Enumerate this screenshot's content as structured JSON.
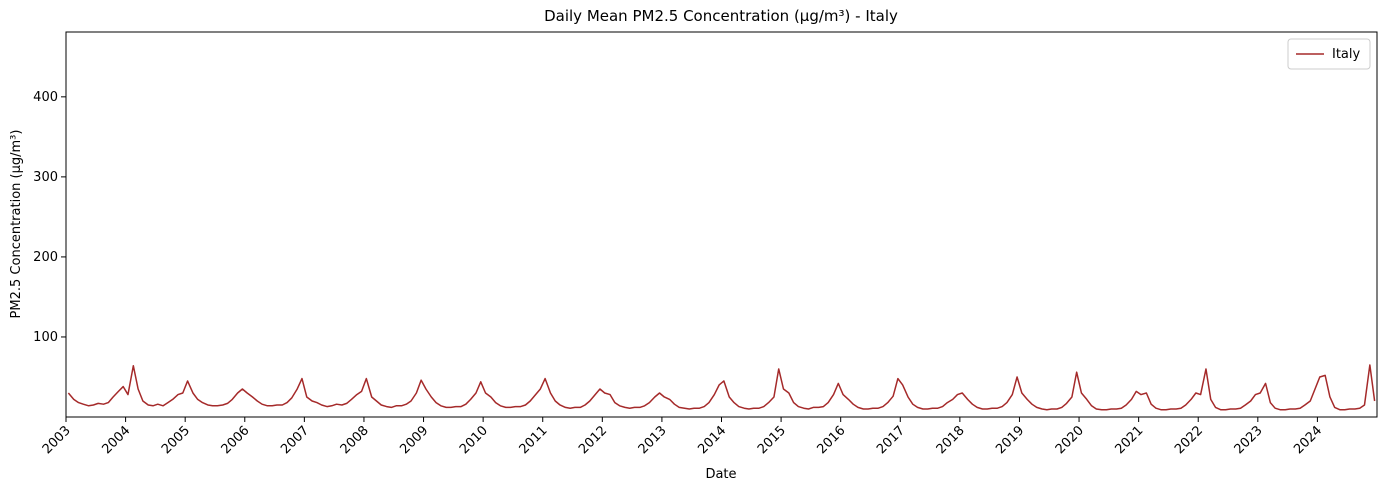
{
  "chart_data": {
    "type": "line",
    "title": "Daily Mean PM2.5 Concentration (µg/m³) - Italy",
    "xlabel": "Date",
    "ylabel": "PM2.5 Concentration (µg/m³)",
    "xlim": [
      2003,
      2025
    ],
    "ylim": [
      0,
      481
    ],
    "xticks": [
      2003,
      2004,
      2005,
      2006,
      2007,
      2008,
      2009,
      2010,
      2011,
      2012,
      2013,
      2014,
      2015,
      2016,
      2017,
      2018,
      2019,
      2020,
      2021,
      2022,
      2023,
      2024
    ],
    "yticks": [
      100,
      200,
      300,
      400
    ],
    "grid": false,
    "legend": "upper right",
    "x": [
      2003.04,
      2003.13,
      2003.21,
      2003.29,
      2003.38,
      2003.46,
      2003.54,
      2003.63,
      2003.71,
      2003.79,
      2003.88,
      2003.96,
      2004.04,
      2004.13,
      2004.21,
      2004.29,
      2004.38,
      2004.46,
      2004.54,
      2004.63,
      2004.71,
      2004.79,
      2004.88,
      2004.96,
      2005.04,
      2005.13,
      2005.21,
      2005.29,
      2005.38,
      2005.46,
      2005.54,
      2005.63,
      2005.71,
      2005.79,
      2005.88,
      2005.96,
      2006.04,
      2006.13,
      2006.21,
      2006.29,
      2006.38,
      2006.46,
      2006.54,
      2006.63,
      2006.71,
      2006.79,
      2006.88,
      2006.96,
      2007.04,
      2007.13,
      2007.21,
      2007.29,
      2007.38,
      2007.46,
      2007.54,
      2007.63,
      2007.71,
      2007.79,
      2007.88,
      2007.96,
      2008.04,
      2008.13,
      2008.21,
      2008.29,
      2008.38,
      2008.46,
      2008.54,
      2008.63,
      2008.71,
      2008.79,
      2008.88,
      2008.96,
      2009.04,
      2009.13,
      2009.21,
      2009.29,
      2009.38,
      2009.46,
      2009.54,
      2009.63,
      2009.71,
      2009.79,
      2009.88,
      2009.96,
      2010.04,
      2010.13,
      2010.21,
      2010.29,
      2010.38,
      2010.46,
      2010.54,
      2010.63,
      2010.71,
      2010.79,
      2010.88,
      2010.96,
      2011.04,
      2011.13,
      2011.21,
      2011.29,
      2011.38,
      2011.46,
      2011.54,
      2011.63,
      2011.71,
      2011.79,
      2011.88,
      2011.96,
      2012.04,
      2012.13,
      2012.21,
      2012.29,
      2012.38,
      2012.46,
      2012.54,
      2012.63,
      2012.71,
      2012.79,
      2012.88,
      2012.96,
      2013.04,
      2013.13,
      2013.21,
      2013.29,
      2013.38,
      2013.46,
      2013.54,
      2013.63,
      2013.71,
      2013.79,
      2013.88,
      2013.96,
      2014.04,
      2014.13,
      2014.21,
      2014.29,
      2014.38,
      2014.46,
      2014.54,
      2014.63,
      2014.71,
      2014.79,
      2014.88,
      2014.96,
      2015.04,
      2015.13,
      2015.21,
      2015.29,
      2015.38,
      2015.46,
      2015.54,
      2015.63,
      2015.71,
      2015.79,
      2015.88,
      2015.96,
      2016.04,
      2016.13,
      2016.21,
      2016.29,
      2016.38,
      2016.46,
      2016.54,
      2016.63,
      2016.71,
      2016.79,
      2016.88,
      2016.96,
      2017.04,
      2017.13,
      2017.21,
      2017.29,
      2017.38,
      2017.46,
      2017.54,
      2017.63,
      2017.71,
      2017.79,
      2017.88,
      2017.96,
      2018.04,
      2018.13,
      2018.21,
      2018.29,
      2018.38,
      2018.46,
      2018.54,
      2018.63,
      2018.71,
      2018.79,
      2018.88,
      2018.96,
      2019.04,
      2019.13,
      2019.21,
      2019.29,
      2019.38,
      2019.46,
      2019.54,
      2019.63,
      2019.71,
      2019.79,
      2019.88,
      2019.96,
      2020.04,
      2020.13,
      2020.21,
      2020.29,
      2020.38,
      2020.46,
      2020.54,
      2020.63,
      2020.71,
      2020.79,
      2020.88,
      2020.96,
      2021.04,
      2021.13,
      2021.21,
      2021.29,
      2021.38,
      2021.46,
      2021.54,
      2021.63,
      2021.71,
      2021.79,
      2021.88,
      2021.96,
      2022.04,
      2022.13,
      2022.21,
      2022.29,
      2022.38,
      2022.46,
      2022.54,
      2022.63,
      2022.71,
      2022.79,
      2022.88,
      2022.96,
      2023.04,
      2023.13,
      2023.21,
      2023.29,
      2023.38,
      2023.46,
      2023.54,
      2023.63,
      2023.71,
      2023.79,
      2023.88,
      2023.96,
      2024.04,
      2024.13,
      2024.21,
      2024.29,
      2024.38,
      2024.46,
      2024.54,
      2024.63,
      2024.71,
      2024.79,
      2024.88,
      2024.96
    ],
    "series": [
      {
        "name": "Italy",
        "color": "#a52a2a",
        "values": [
          30,
          22,
          18,
          16,
          14,
          15,
          17,
          16,
          18,
          25,
          32,
          38,
          28,
          64,
          35,
          20,
          15,
          14,
          16,
          14,
          18,
          22,
          28,
          30,
          45,
          30,
          22,
          18,
          15,
          14,
          14,
          15,
          17,
          22,
          30,
          35,
          30,
          25,
          20,
          16,
          14,
          14,
          15,
          15,
          18,
          24,
          35,
          48,
          25,
          20,
          18,
          15,
          13,
          14,
          16,
          15,
          17,
          22,
          28,
          32,
          48,
          25,
          20,
          15,
          13,
          12,
          14,
          14,
          16,
          20,
          30,
          46,
          35,
          25,
          18,
          14,
          12,
          12,
          13,
          13,
          16,
          22,
          30,
          44,
          30,
          25,
          18,
          14,
          12,
          12,
          13,
          13,
          15,
          20,
          28,
          35,
          48,
          30,
          20,
          15,
          12,
          11,
          12,
          12,
          15,
          20,
          28,
          35,
          30,
          28,
          18,
          14,
          12,
          11,
          12,
          12,
          14,
          18,
          25,
          30,
          25,
          22,
          16,
          12,
          11,
          10,
          11,
          11,
          13,
          18,
          28,
          40,
          45,
          25,
          18,
          13,
          11,
          10,
          11,
          11,
          13,
          18,
          25,
          60,
          35,
          30,
          18,
          13,
          11,
          10,
          12,
          12,
          13,
          18,
          28,
          42,
          28,
          22,
          16,
          12,
          10,
          10,
          11,
          11,
          13,
          18,
          26,
          48,
          40,
          25,
          16,
          12,
          10,
          10,
          11,
          11,
          13,
          18,
          22,
          28,
          30,
          22,
          16,
          12,
          10,
          10,
          11,
          11,
          13,
          18,
          28,
          50,
          30,
          22,
          16,
          12,
          10,
          9,
          10,
          10,
          12,
          17,
          25,
          56,
          30,
          22,
          14,
          10,
          9,
          9,
          10,
          10,
          11,
          15,
          22,
          32,
          28,
          30,
          16,
          11,
          9,
          9,
          10,
          10,
          11,
          15,
          22,
          30,
          28,
          60,
          22,
          12,
          9,
          9,
          10,
          10,
          11,
          15,
          20,
          28,
          30,
          42,
          18,
          11,
          9,
          9,
          10,
          10,
          11,
          15,
          20,
          35,
          50,
          52,
          25,
          12,
          9,
          9,
          10,
          10,
          11,
          15,
          65,
          20
        ]
      }
    ]
  }
}
